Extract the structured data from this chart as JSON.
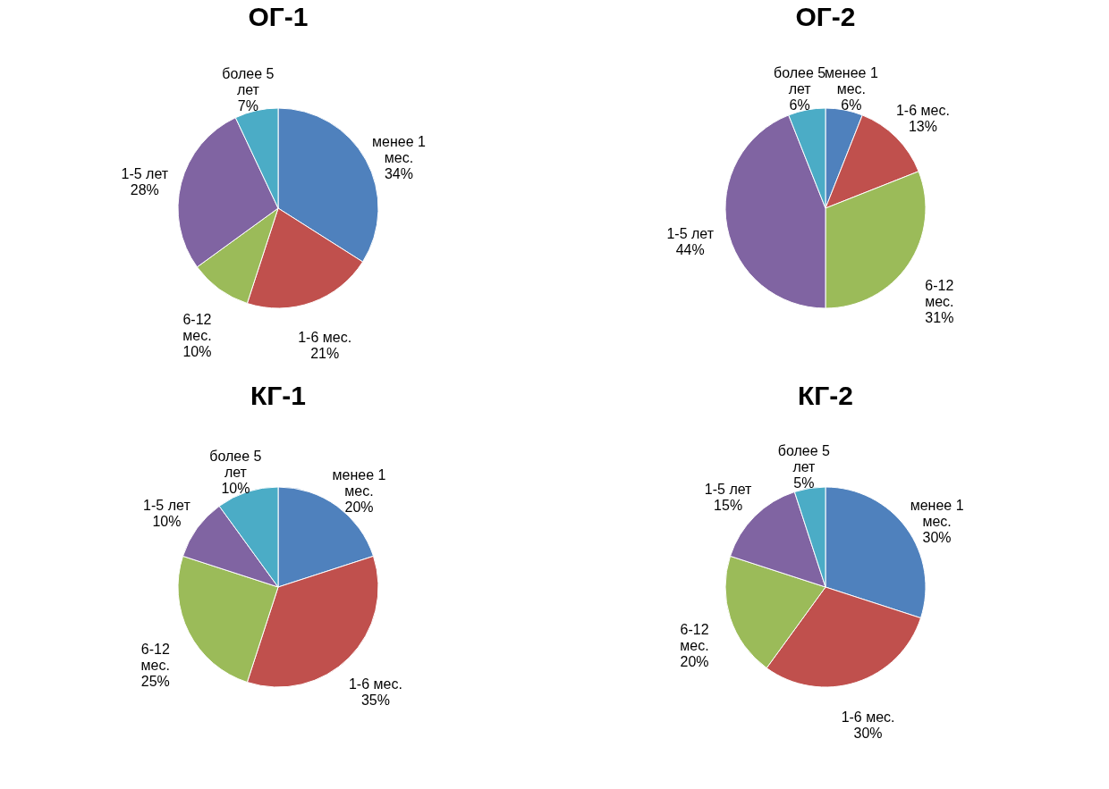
{
  "chart_data": [
    {
      "type": "pie",
      "title": "ОГ-1",
      "categories": [
        "менее 1 мес.",
        "1-6 мес.",
        "6-12 мес.",
        "1-5 лет",
        "более 5 лет"
      ],
      "values": [
        34,
        21,
        10,
        28,
        7
      ],
      "value_labels": [
        "34%",
        "21%",
        "10%",
        "28%",
        "7%"
      ],
      "colors": [
        "#4f81bd",
        "#c0504d",
        "#9bbb59",
        "#8064a2",
        "#4bacc6"
      ]
    },
    {
      "type": "pie",
      "title": "ОГ-2",
      "categories": [
        "менее 1 мес.",
        "1-6 мес.",
        "6-12 мес.",
        "1-5 лет",
        "более 5 лет"
      ],
      "values": [
        6,
        13,
        31,
        44,
        6
      ],
      "value_labels": [
        "6%",
        "13%",
        "31%",
        "44%",
        "6%"
      ],
      "colors": [
        "#4f81bd",
        "#c0504d",
        "#9bbb59",
        "#8064a2",
        "#4bacc6"
      ]
    },
    {
      "type": "pie",
      "title": "КГ-1",
      "categories": [
        "менее 1 мес.",
        "1-6 мес.",
        "6-12 мес.",
        "1-5 лет",
        "более 5 лет"
      ],
      "values": [
        20,
        35,
        25,
        10,
        10
      ],
      "value_labels": [
        "20%",
        "35%",
        "25%",
        "10%",
        "10%"
      ],
      "colors": [
        "#4f81bd",
        "#c0504d",
        "#9bbb59",
        "#8064a2",
        "#4bacc6"
      ]
    },
    {
      "type": "pie",
      "title": "КГ-2",
      "categories": [
        "менее 1 мес.",
        "1-6 мес.",
        "6-12 мес.",
        "1-5 лет",
        "более 5 лет"
      ],
      "values": [
        30,
        30,
        20,
        15,
        5
      ],
      "value_labels": [
        "30%",
        "30%",
        "20%",
        "15%",
        "5%"
      ],
      "colors": [
        "#4f81bd",
        "#c0504d",
        "#9bbb59",
        "#8064a2",
        "#4bacc6"
      ]
    }
  ]
}
